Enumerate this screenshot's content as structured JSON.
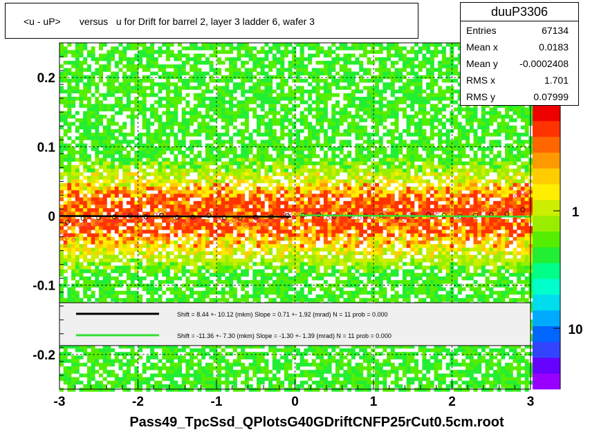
{
  "title": "<u - uP>       versus   u for Drift for barrel 2, layer 3 ladder 6, wafer 3",
  "stats": {
    "name": "duuP3306",
    "rows": [
      {
        "label": "Entries",
        "value": "67134"
      },
      {
        "label": "Mean x",
        "value": "0.0183"
      },
      {
        "label": "Mean y",
        "value": "-0.0002408"
      },
      {
        "label": "RMS x",
        "value": "1.701"
      },
      {
        "label": "RMS y",
        "value": "0.07999"
      }
    ]
  },
  "legend": {
    "entries": [
      {
        "text": "Shift =    8.44 +- 10.12 (mkm) Slope =    0.71 +- 1.92 (mrad)  N = 11 prob = 0.000",
        "color": "#000000"
      },
      {
        "text": "Shift =   -11.36 +- 7.30 (mkm) Slope =    -1.30 +- 1.39 (mrad)  N = 11 prob = 0.000",
        "color": "#33dd33"
      }
    ]
  },
  "chart_data": {
    "type": "heatmap",
    "xlabel": "Pass49_TpcSsd_QPlotsG40GDriftCNFP25rCut0.5cm.root",
    "ylabel": "",
    "xlim": [
      -3,
      3
    ],
    "ylim": [
      -0.25,
      0.25
    ],
    "x_ticks": [
      "-3",
      "-2",
      "-1",
      "0",
      "1",
      "2",
      "3"
    ],
    "y_ticks": [
      "-0.2",
      "-0.1",
      "0",
      "0.1",
      "0.2"
    ],
    "colorbar_ticks": [
      "1",
      "10"
    ],
    "colorbar_scale": "log",
    "grid": true,
    "series": [
      {
        "name": "fit-black",
        "color": "#000000",
        "x": [
          -3,
          -0.05
        ],
        "y": [
          0.0,
          -0.001
        ]
      },
      {
        "name": "fit-green",
        "color": "#33dd33",
        "x": [
          0.05,
          3
        ],
        "y": [
          0.001,
          -0.001
        ]
      }
    ],
    "profile_points": {
      "x": [
        -2.9,
        -2.7,
        -2.5,
        -2.3,
        -2.1,
        -1.9,
        -1.7,
        -1.5,
        -1.3,
        -1.1,
        -0.9,
        -0.7,
        -0.5,
        -0.3,
        -0.1,
        0.1,
        0.3,
        0.5,
        0.7,
        0.9,
        1.1,
        1.3,
        1.5,
        1.7,
        1.9,
        2.1,
        2.3,
        2.5,
        2.7,
        2.9
      ],
      "y": [
        -0.03,
        -0.012,
        -0.008,
        -0.004,
        0.0,
        -0.003,
        0.004,
        -0.006,
        -0.005,
        0.002,
        -0.008,
        -0.01,
        -0.006,
        -0.004,
        0.001,
        0.004,
        0.006,
        -0.002,
        0.003,
        0.0,
        0.002,
        -0.004,
        0.002,
        0.006,
        0.004,
        -0.002,
        0.004,
        0.006,
        0.01,
        0.03
      ]
    }
  },
  "colors": {
    "palette": [
      "#9900ff",
      "#6600ff",
      "#3344ff",
      "#0066ff",
      "#00aaff",
      "#00ddee",
      "#00ffcc",
      "#00ff88",
      "#22ee33",
      "#55ee00",
      "#99ee00",
      "#ccee00",
      "#ffee00",
      "#ffcc00",
      "#ff9900",
      "#ff6600",
      "#ff3300",
      "#ee0000"
    ]
  }
}
